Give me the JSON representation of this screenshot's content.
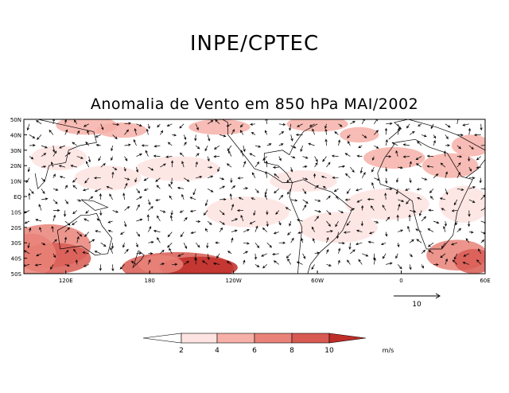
{
  "header": {
    "title": "INPE/CPTEC"
  },
  "chart_data": {
    "type": "vector-field",
    "title": "Anomalia de Vento em 850 hPa MAI/2002",
    "xlabel": "",
    "ylabel": "",
    "x_ticks": [
      "120E",
      "180",
      "120W",
      "60W",
      "0",
      "60E"
    ],
    "y_ticks": [
      "50N",
      "40N",
      "30N",
      "20N",
      "10N",
      "EQ",
      "10S",
      "20S",
      "30S",
      "40S",
      "50S"
    ],
    "reference_vector": {
      "label": "10",
      "magnitude": 10,
      "units": "m/s"
    },
    "colorbar": {
      "units": "m/s",
      "levels": [
        "2",
        "4",
        "6",
        "8",
        "10"
      ],
      "colors": [
        "#ffffff",
        "#fde3e1",
        "#f6b0a8",
        "#e98279",
        "#d85a52",
        "#bf2d28"
      ]
    },
    "shaded_regions_note": "wind speed anomaly magnitude shaded above 2 m/s"
  }
}
